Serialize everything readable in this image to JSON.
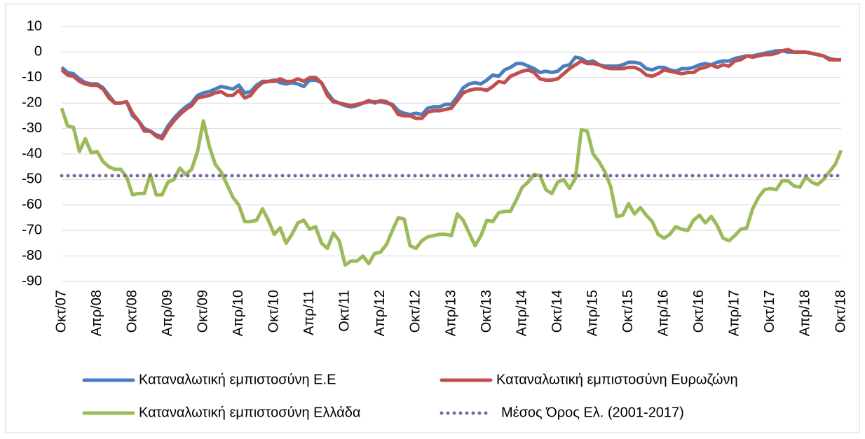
{
  "chart_data": {
    "type": "line",
    "categories": [
      "Οκτ/07",
      null,
      null,
      null,
      null,
      null,
      "Απρ/08",
      null,
      null,
      null,
      null,
      null,
      "Οκτ/08",
      null,
      null,
      null,
      null,
      null,
      "Απρ/09",
      null,
      null,
      null,
      null,
      null,
      "Οκτ/09",
      null,
      null,
      null,
      null,
      null,
      "Απρ/10",
      null,
      null,
      null,
      null,
      null,
      "Οκτ/10",
      null,
      null,
      null,
      null,
      null,
      "Απρ/11",
      null,
      null,
      null,
      null,
      null,
      "Οκτ/11",
      null,
      null,
      null,
      null,
      null,
      "Απρ/12",
      null,
      null,
      null,
      null,
      null,
      "Οκτ/12",
      null,
      null,
      null,
      null,
      null,
      "Απρ/13",
      null,
      null,
      null,
      null,
      null,
      "Οκτ/13",
      null,
      null,
      null,
      null,
      null,
      "Απρ/14",
      null,
      null,
      null,
      null,
      null,
      "Οκτ/14",
      null,
      null,
      null,
      null,
      null,
      "Απρ/15",
      null,
      null,
      null,
      null,
      null,
      "Οκτ/15",
      null,
      null,
      null,
      null,
      null,
      "Απρ/16",
      null,
      null,
      null,
      null,
      null,
      "Οκτ/16",
      null,
      null,
      null,
      null,
      null,
      "Απρ/17",
      null,
      null,
      null,
      null,
      null,
      "Οκτ/17",
      null,
      null,
      null,
      null,
      null,
      "Απρ/18",
      null,
      null,
      null,
      null,
      null,
      "Οκτ/18"
    ],
    "series": [
      {
        "name": "Καταναλωτική εμπιστοσύνη Ε.Ε",
        "color": "#4a7ebf",
        "values": [
          -6,
          -8,
          -8.5,
          -10.5,
          -12,
          -12.5,
          -12.5,
          -14,
          -17,
          -20,
          -20,
          -19.5,
          -25,
          -27,
          -30,
          -31,
          -32.5,
          -33,
          -29,
          -26,
          -23.5,
          -21.5,
          -20,
          -17,
          -16,
          -15.5,
          -14.5,
          -13.5,
          -14,
          -14.5,
          -13,
          -16,
          -15.5,
          -13,
          -11.5,
          -11.5,
          -11,
          -12,
          -12.5,
          -12,
          -12.5,
          -13.5,
          -11,
          -11,
          -12,
          -16,
          -19,
          -20,
          -21,
          -21.5,
          -21,
          -20,
          -19.5,
          -19.5,
          -19.5,
          -20,
          -20.5,
          -23,
          -24,
          -24.5,
          -24,
          -24.5,
          -22,
          -21.5,
          -21.5,
          -20.5,
          -20.5,
          -17.5,
          -14,
          -12.5,
          -12,
          -12.5,
          -11,
          -9,
          -9.5,
          -7,
          -6,
          -4.5,
          -4.5,
          -5.5,
          -6.5,
          -8,
          -7.5,
          -8,
          -7.5,
          -5.5,
          -5,
          -2,
          -2.5,
          -4,
          -3.5,
          -5,
          -5.5,
          -5.5,
          -5.5,
          -5,
          -4,
          -4,
          -4.5,
          -6.5,
          -7,
          -6,
          -6,
          -7,
          -7.5,
          -6.5,
          -6.5,
          -6,
          -5,
          -4.5,
          -5,
          -4,
          -3.5,
          -3.5,
          -2.5,
          -2,
          -1.5,
          -1.5,
          -1,
          -0.5,
          0,
          0.5,
          0.5,
          0,
          0,
          0,
          0,
          -0.5,
          -1,
          -1.5,
          -2.5,
          -3,
          -3
        ]
      },
      {
        "name": "Καταναλωτική εμπιστοσύνη Ευρωζώνη",
        "color": "#c0504d",
        "values": [
          -7,
          -9,
          -9.5,
          -11.5,
          -12.5,
          -13,
          -13,
          -14.5,
          -18,
          -20,
          -20,
          -19.5,
          -24,
          -27,
          -31,
          -31,
          -33,
          -34,
          -30,
          -27,
          -24.5,
          -22.5,
          -21,
          -18,
          -17.5,
          -17,
          -16,
          -15.5,
          -17,
          -17,
          -15,
          -18,
          -17,
          -14,
          -12,
          -11.5,
          -11.5,
          -10.5,
          -11.5,
          -11.5,
          -10.5,
          -11.5,
          -10,
          -10,
          -12,
          -17,
          -19.5,
          -20,
          -20.5,
          -21,
          -20.5,
          -20,
          -19,
          -20,
          -19,
          -19.5,
          -21,
          -24.5,
          -25,
          -25,
          -26,
          -26,
          -23.5,
          -23,
          -23,
          -22.5,
          -22,
          -19,
          -16,
          -15,
          -14.5,
          -14.5,
          -15,
          -13.5,
          -11.5,
          -12,
          -9.5,
          -8.5,
          -7.5,
          -7,
          -8,
          -10.5,
          -11,
          -11,
          -10.5,
          -8.5,
          -6.5,
          -5,
          -3.5,
          -4.5,
          -4.5,
          -5,
          -6,
          -6.5,
          -6.5,
          -6.5,
          -6,
          -6,
          -7,
          -9,
          -9.5,
          -8.5,
          -7,
          -7.5,
          -8,
          -8.5,
          -8,
          -8,
          -6.5,
          -6,
          -5,
          -6,
          -5,
          -5.5,
          -3.5,
          -3,
          -1.5,
          -2,
          -1.5,
          -1,
          -1,
          -0.5,
          0.5,
          1,
          0,
          0,
          0,
          -0.5,
          -1,
          -1.5,
          -3,
          -3,
          -3
        ]
      },
      {
        "name": "Καταναλωτική εμπιστοσύνη Ελλάδα",
        "color": "#9bbb59",
        "values": [
          -22,
          -29,
          -29.5,
          -39,
          -34,
          -39.5,
          -39,
          -43,
          -45,
          -46,
          -46,
          -49,
          -56,
          -55.5,
          -55.5,
          -48,
          -56,
          -56,
          -51,
          -50,
          -45.5,
          -48,
          -46,
          -39,
          -27,
          -37,
          -44,
          -47,
          -52,
          -57,
          -60,
          -66.5,
          -66.5,
          -66,
          -61.5,
          -66,
          -71.5,
          -69,
          -75,
          -71.5,
          -67,
          -66,
          -69.5,
          -68.5,
          -75,
          -77,
          -71,
          -74,
          -83.5,
          -82,
          -82,
          -80,
          -83,
          -79,
          -78.5,
          -75.5,
          -70,
          -65,
          -65.5,
          -76,
          -77,
          -74,
          -72.5,
          -72,
          -71.5,
          -71.5,
          -72,
          -63.5,
          -66,
          -71,
          -76,
          -72,
          -66,
          -66.5,
          -63,
          -62.5,
          -62.5,
          -58,
          -53,
          -51,
          -48,
          -48.5,
          -54,
          -55.5,
          -51,
          -50,
          -53.5,
          -49.5,
          -30.5,
          -31,
          -40,
          -43,
          -47,
          -53,
          -64.5,
          -64,
          -59.5,
          -63.5,
          -61,
          -64,
          -66.5,
          -71.5,
          -73,
          -71.5,
          -68.5,
          -69.5,
          -70,
          -66,
          -64,
          -67,
          -64.5,
          -68,
          -73,
          -74,
          -72,
          -69.5,
          -69,
          -61.5,
          -57,
          -54,
          -53.5,
          -54,
          -50.5,
          -50.5,
          -52.5,
          -53,
          -49,
          -51,
          -52,
          -50,
          -47,
          -44,
          -38.5
        ]
      }
    ],
    "reference_line": {
      "name": "Μέσος Όρος Ελ. (2001-2017)",
      "value": -48.5,
      "color": "#8064a2",
      "style": "dotted"
    },
    "ylim": [
      -90,
      10
    ],
    "yticks": [
      10,
      0,
      -10,
      -20,
      -30,
      -40,
      -50,
      -60,
      -70,
      -80,
      -90
    ],
    "grid": true,
    "legend": "bottom"
  }
}
